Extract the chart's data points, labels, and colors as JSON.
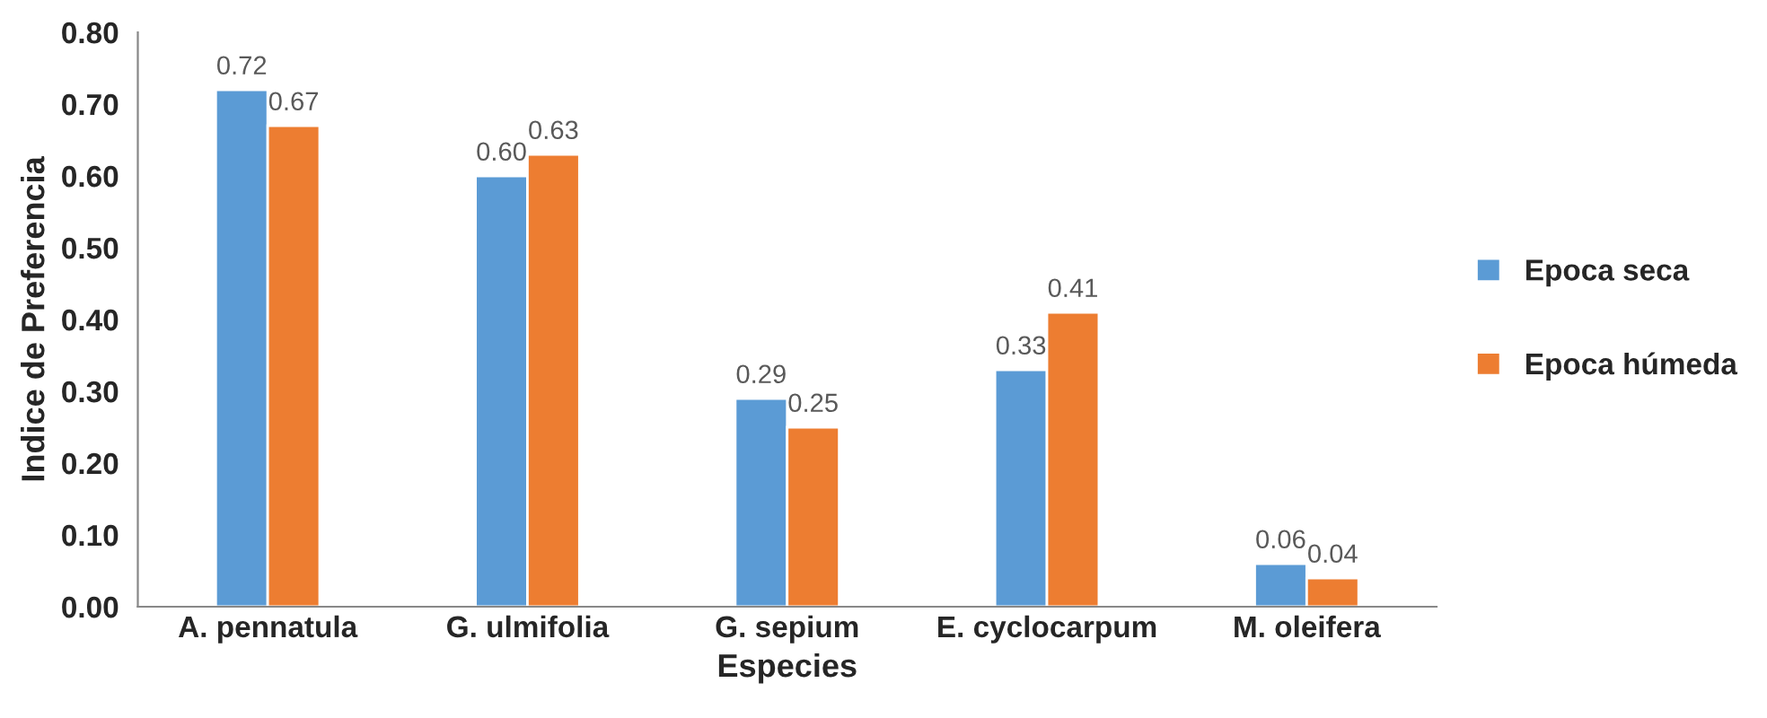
{
  "chart_data": {
    "type": "bar",
    "xlabel": "Especies",
    "ylabel": "Indice de Preferencia",
    "categories": [
      "A. pennatula",
      "G. ulmifolia",
      "G. sepium",
      "E. cyclocarpum",
      "M. oleifera"
    ],
    "series": [
      {
        "name": "Epoca seca",
        "color": "#5b9bd5",
        "values": [
          0.72,
          0.6,
          0.29,
          0.33,
          0.06
        ],
        "value_labels": [
          "0.72",
          "0.60",
          "0.29",
          "0.33",
          "0.06"
        ]
      },
      {
        "name": "Epoca húmeda",
        "color": "#ed7d31",
        "values": [
          0.67,
          0.63,
          0.25,
          0.41,
          0.04
        ],
        "value_labels": [
          "0.67",
          "0.63",
          "0.25",
          "0.41",
          "0.04"
        ]
      }
    ],
    "ylim": [
      0,
      0.8
    ],
    "yticks": [
      {
        "value": 0,
        "label": "0.00"
      },
      {
        "value": 0.1,
        "label": "0.10"
      },
      {
        "value": 0.2,
        "label": "0.20"
      },
      {
        "value": 0.3,
        "label": "0.30"
      },
      {
        "value": 0.4,
        "label": "0.40"
      },
      {
        "value": 0.5,
        "label": "0.50"
      },
      {
        "value": 0.6,
        "label": "0.60"
      },
      {
        "value": 0.7,
        "label": "0.70"
      },
      {
        "value": 0.8,
        "label": "0.80"
      }
    ],
    "grid": false,
    "legend": "right"
  }
}
